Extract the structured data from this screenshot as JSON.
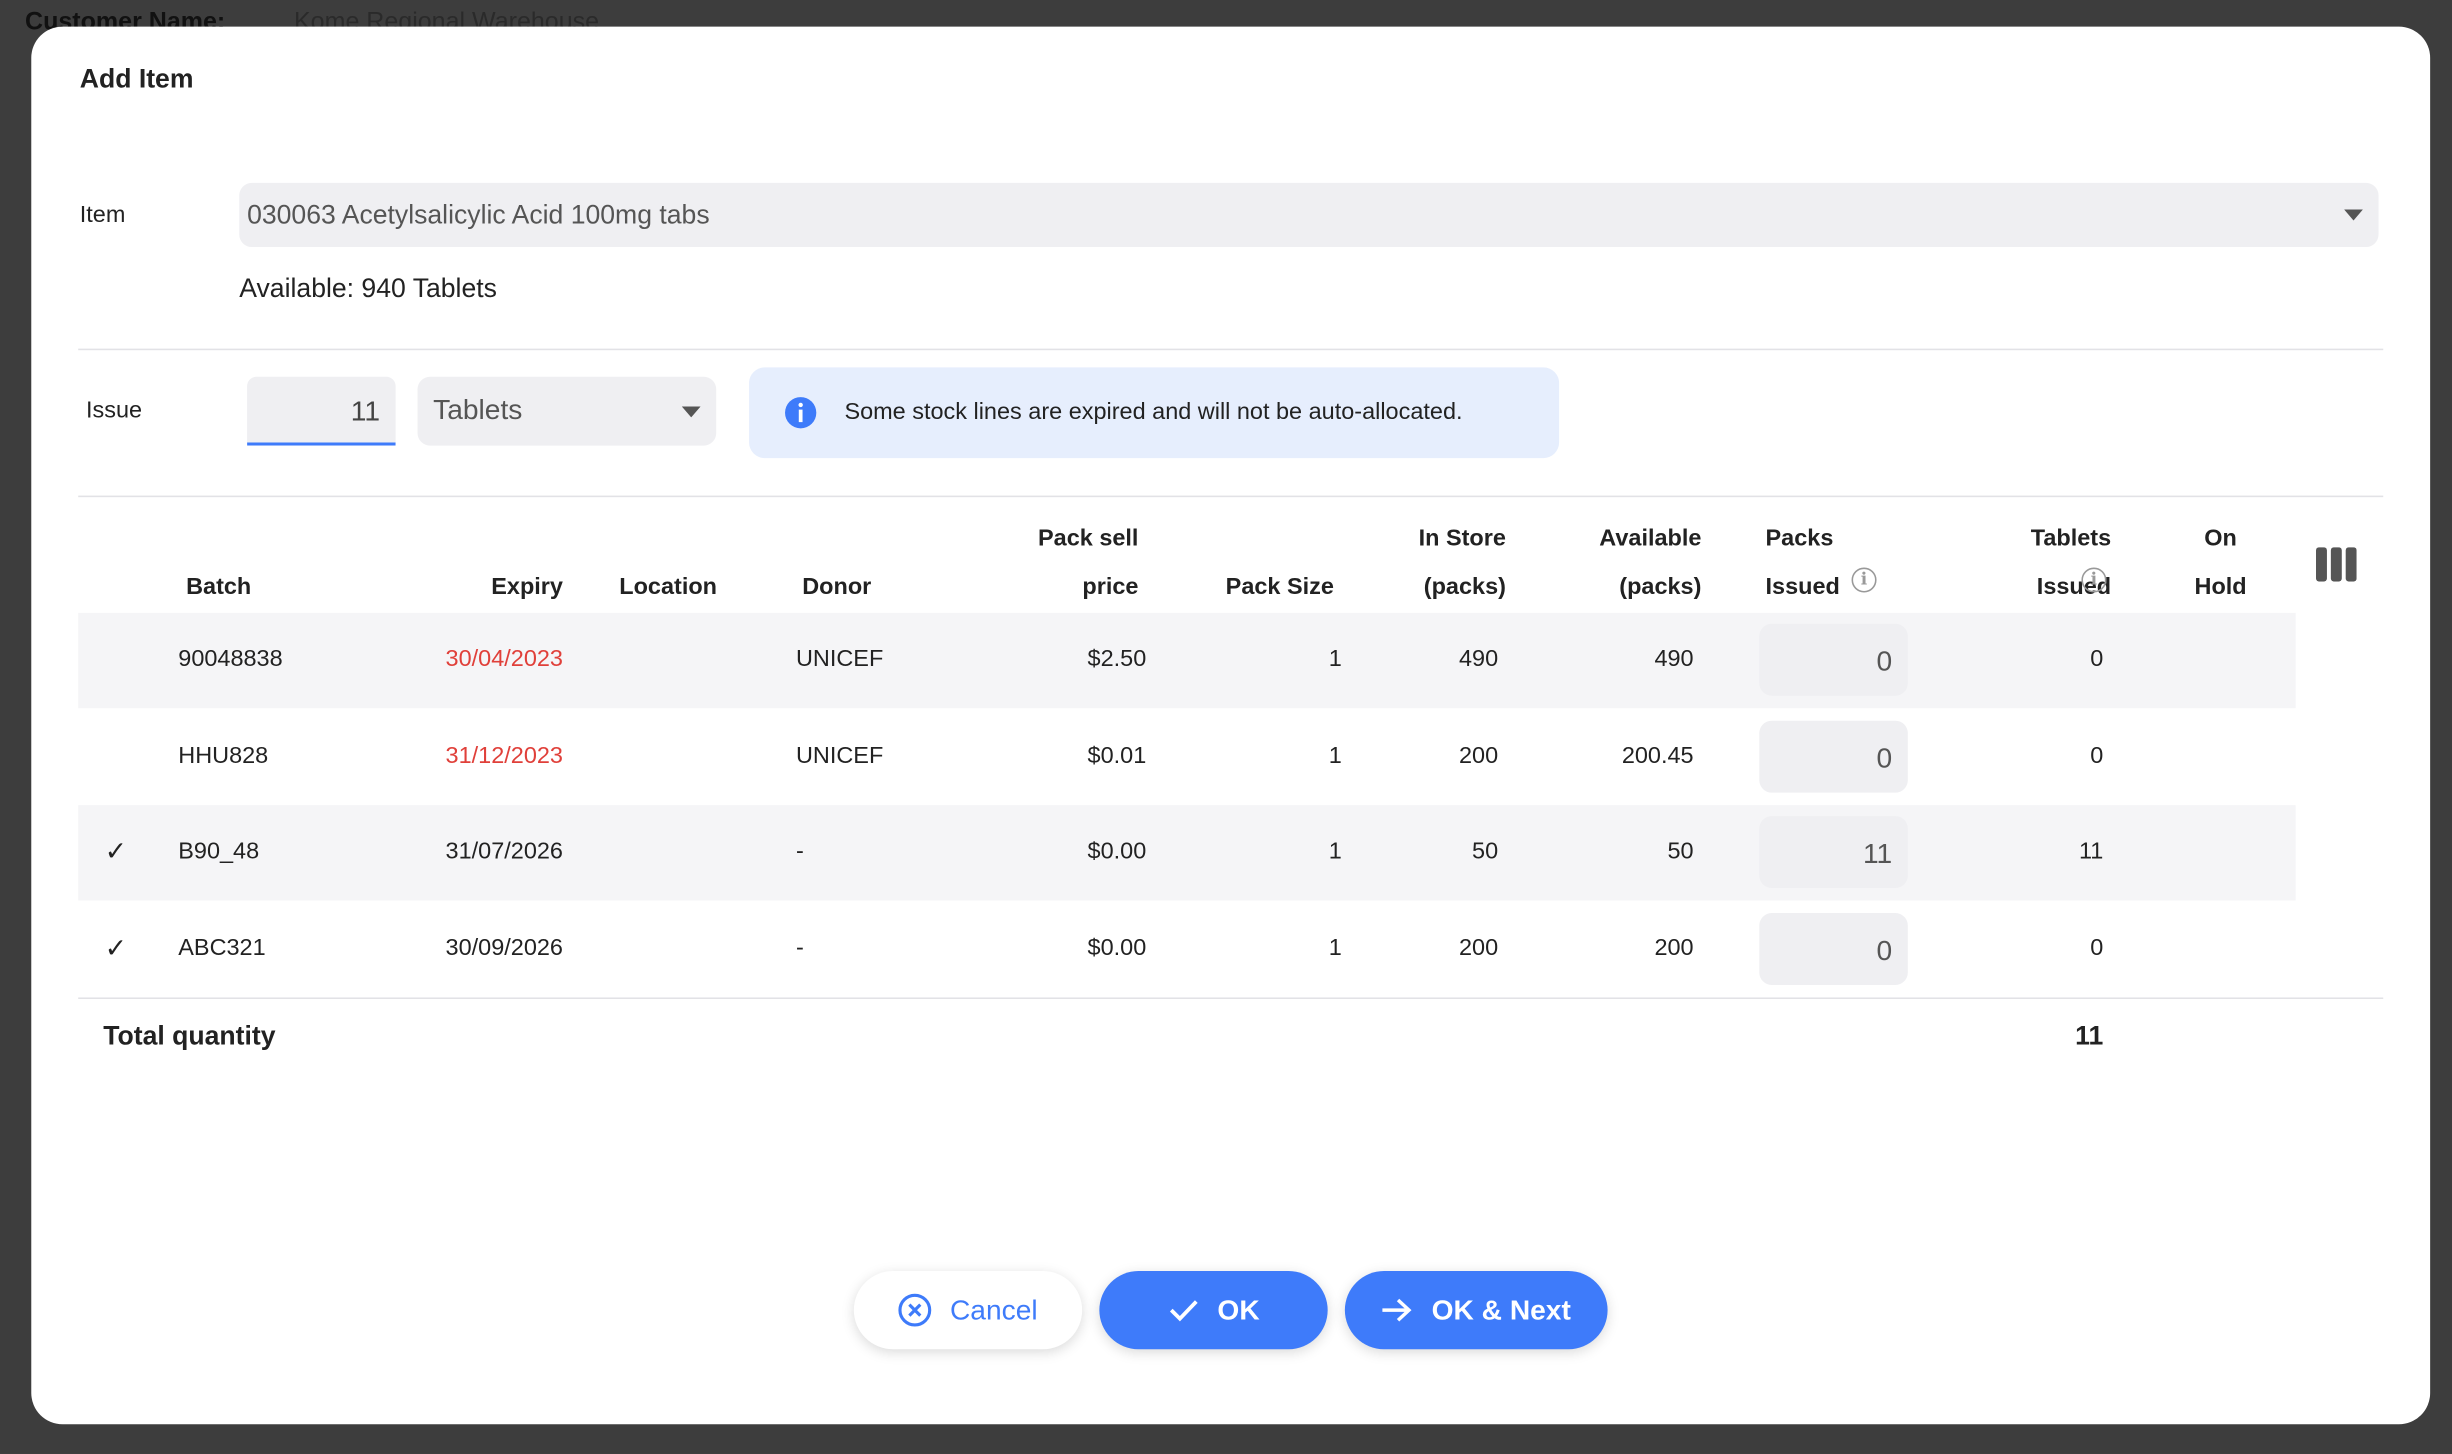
{
  "background": {
    "customer_label": "Customer Name:",
    "customer_value": "Kome Regional Warehouse"
  },
  "modal": {
    "title": "Add Item",
    "item_label": "Item",
    "item_value": "030063 Acetylsalicylic Acid 100mg tabs",
    "available": "Available: 940 Tablets",
    "issue_label": "Issue",
    "issue_value": "11",
    "unit": "Tablets",
    "notice": "Some stock lines are expired and will not be auto-allocated."
  },
  "table": {
    "headers": {
      "batch": [
        "Batch"
      ],
      "expiry": [
        "Expiry"
      ],
      "location": [
        "Location"
      ],
      "donor": [
        "Donor"
      ],
      "price": [
        "Pack sell",
        "price"
      ],
      "pack_size": [
        "Pack Size"
      ],
      "in_store": [
        "In Store",
        "(packs)"
      ],
      "available": [
        "Available",
        "(packs)"
      ],
      "packs_issued": [
        "Packs",
        "Issued"
      ],
      "tablets_issued": [
        "Tablets",
        "Issued"
      ],
      "on_hold": [
        "On",
        "Hold"
      ]
    },
    "rows": [
      {
        "batch": "90048838",
        "expiry": "30/04/2023",
        "expired": true,
        "donor": "UNICEF",
        "price": "$2.50",
        "pack_size": 1,
        "in_store": 490,
        "available": 490,
        "packs_issued": 0,
        "tablets_issued": 0
      },
      {
        "batch": "HHU828",
        "expiry": "31/12/2023",
        "expired": true,
        "donor": "UNICEF",
        "price": "$0.01",
        "pack_size": 1,
        "in_store": 200,
        "available": 200.45,
        "packs_issued": 0,
        "tablets_issued": 0
      },
      {
        "selected": "✓",
        "batch": "B90_48",
        "expiry": "31/07/2026",
        "expired": false,
        "donor": "-",
        "price": "$0.00",
        "pack_size": 1,
        "in_store": 50,
        "available": 50,
        "packs_issued": 11,
        "tablets_issued": 11
      },
      {
        "selected": "✓",
        "batch": "ABC321",
        "expiry": "30/09/2026",
        "expired": false,
        "donor": "-",
        "price": "$0.00",
        "pack_size": 1,
        "in_store": 200,
        "available": 200,
        "packs_issued": 0,
        "tablets_issued": 0
      }
    ],
    "total_label": "Total quantity",
    "total_value": 11
  },
  "buttons": {
    "cancel": "Cancel",
    "ok": "OK",
    "ok_next": "OK & Next"
  }
}
